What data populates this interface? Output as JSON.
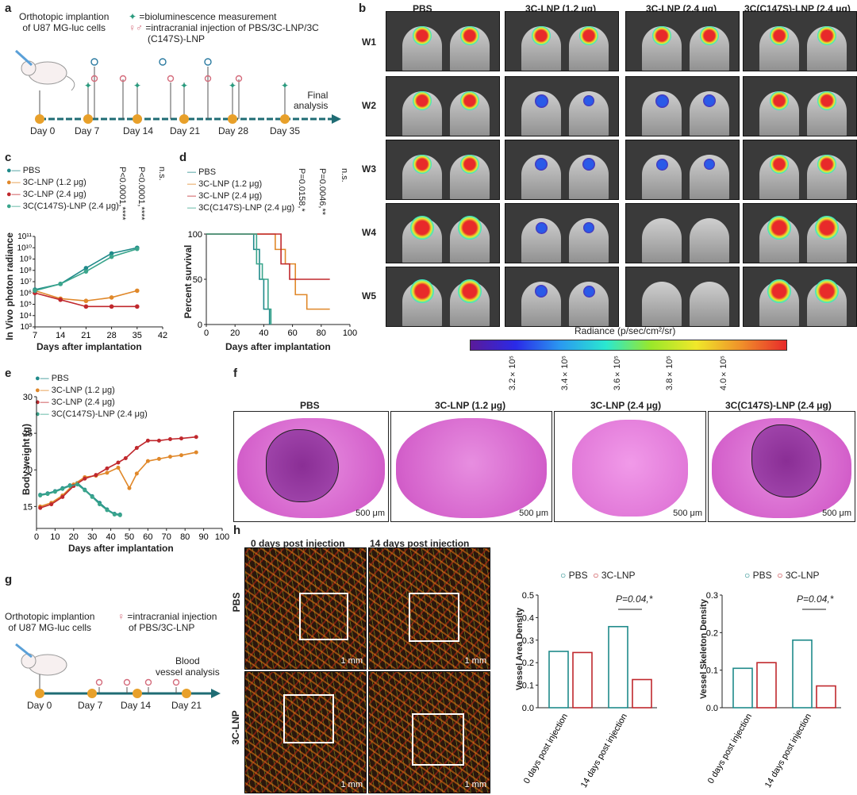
{
  "panel_letters": {
    "a": "a",
    "b": "b",
    "c": "c",
    "d": "d",
    "e": "e",
    "f": "f",
    "g": "g",
    "h": "h"
  },
  "panel_a": {
    "model_line1": "Orthotopic implantion",
    "model_line2": "of U87 MG-luc cells",
    "legend_bio": "=bioluminescence measurement",
    "legend_inj_1": "=intracranial injection of PBS/3C-LNP/3C",
    "legend_inj_2": "(C147S)-LNP",
    "final_1": "Final",
    "final_2": "analysis",
    "days": [
      "Day 0",
      "Day 7",
      "Day 14",
      "Day 21",
      "Day 28",
      "Day 35"
    ]
  },
  "panel_b": {
    "columns": [
      "PBS",
      "3C-LNP (1.2 μg)",
      "3C-LNP (2.4 μg)",
      "3C(C147S)-LNP (2.4 μg)"
    ],
    "rows": [
      "W1",
      "W2",
      "W3",
      "W4",
      "W5"
    ],
    "colorbar_label": "Radiance (p/sec/cm²/sr)",
    "colorbar_ticks": [
      "3.2×10⁵",
      "3.4×10⁵",
      "3.6×10⁵",
      "3.8×10⁵",
      "4.0×10⁵"
    ]
  },
  "panel_c": {
    "legend": [
      "PBS",
      "3C-LNP (1.2 μg)",
      "3C-LNP (2.4 μg)",
      "3C(C147S)-LNP (2.4 μg)"
    ],
    "stats": [
      "P<0.0001,****",
      "P<0.0001,****",
      "n.s."
    ],
    "ylabel": "In Vivo photon radiance",
    "xlabel": "Days after implantation"
  },
  "panel_d": {
    "legend": [
      "PBS",
      "3C-LNP (1.2 μg)",
      "3C-LNP (2.4 μg)",
      "3C(C147S)-LNP (2.4 μg)"
    ],
    "stats": [
      "P=0.0158,*",
      "P=0.0046,**",
      "n.s."
    ],
    "ylabel": "Percent survival",
    "xlabel": "Days after implantation"
  },
  "panel_e": {
    "legend": [
      "PBS",
      "3C-LNP (1.2 μg)",
      "3C-LNP (2.4 μg)",
      "3C(C147S)-LNP (2.4 μg)"
    ],
    "ylabel": "Body weight (g)",
    "xlabel": "Days after implantation"
  },
  "panel_f": {
    "titles": [
      "PBS",
      "3C-LNP (1.2 μg)",
      "3C-LNP (2.4 μg)",
      "3C(C147S)-LNP (2.4 μg)"
    ],
    "scale": "500 μm"
  },
  "panel_g": {
    "model_line1": "Orthotopic implantion",
    "model_line2": "of U87 MG-luc cells",
    "legend_inj_1": "=intracranial injection",
    "legend_inj_2": "of PBS/3C-LNP",
    "blood_1": "Blood",
    "blood_2": "vessel analysis",
    "days": [
      "Day 0",
      "Day 7",
      "Day 14",
      "Day 21"
    ]
  },
  "panel_h": {
    "col_titles": [
      "0 days post injection",
      "14 days post injection"
    ],
    "row_titles": [
      "PBS",
      "3C-LNP"
    ],
    "scale": "1 mm",
    "legend": [
      "PBS",
      "3C-LNP"
    ],
    "ylabel_1": "Vessel Area Density",
    "ylabel_2": "Vessel Skeleton Density",
    "pval": "P=0.04,*",
    "xcats": [
      "0 days post injection",
      "14 days post injection"
    ]
  },
  "colors": {
    "pbs": "#1f8a8a",
    "lnp12": "#e0882a",
    "lnp24": "#c0282d",
    "c147s": "#3aa58c"
  },
  "chart_data": [
    {
      "type": "line",
      "panel": "c",
      "title": "",
      "xlabel": "Days after implantation",
      "ylabel": "In Vivo photon radiance",
      "yscale": "log",
      "xlim": [
        7,
        42
      ],
      "ylim_log10": [
        3,
        11
      ],
      "x_ticks": [
        7,
        14,
        21,
        28,
        35,
        42
      ],
      "y_ticks": [
        "10³",
        "10⁴",
        "10⁵",
        "10⁶",
        "10⁷",
        "10⁸",
        "10⁹",
        "10¹⁰",
        "10¹¹"
      ],
      "x": [
        7,
        14,
        21,
        28,
        35
      ],
      "series": [
        {
          "name": "PBS",
          "log10_values": [
            6.3,
            6.8,
            8.2,
            9.5,
            10.0
          ]
        },
        {
          "name": "3C-LNP (1.2 μg)",
          "log10_values": [
            6.2,
            5.5,
            5.3,
            5.6,
            6.2
          ]
        },
        {
          "name": "3C-LNP (2.4 μg)",
          "log10_values": [
            6.0,
            5.4,
            4.8,
            4.8,
            4.8
          ]
        },
        {
          "name": "3C(C147S)-LNP (2.4 μg)",
          "log10_values": [
            6.2,
            6.8,
            7.9,
            9.2,
            9.9
          ]
        }
      ]
    },
    {
      "type": "line",
      "panel": "d",
      "title": "",
      "xlabel": "Days after implantation",
      "ylabel": "Percent survival",
      "xlim": [
        0,
        100
      ],
      "ylim": [
        0,
        100
      ],
      "x_ticks": [
        0,
        20,
        40,
        60,
        80,
        100
      ],
      "y_ticks": [
        0,
        50,
        100
      ],
      "series": [
        {
          "name": "PBS",
          "x": [
            0,
            33,
            33,
            37,
            37,
            40,
            40,
            44,
            44
          ],
          "values": [
            100,
            100,
            83,
            83,
            50,
            50,
            17,
            17,
            0
          ]
        },
        {
          "name": "3C-LNP (1.2 μg)",
          "x": [
            0,
            48,
            48,
            55,
            55,
            62,
            62,
            70,
            70,
            86
          ],
          "values": [
            100,
            100,
            83,
            83,
            67,
            67,
            33,
            33,
            17,
            17
          ]
        },
        {
          "name": "3C-LNP (2.4 μg)",
          "x": [
            0,
            52,
            52,
            58,
            58,
            86
          ],
          "values": [
            100,
            100,
            67,
            67,
            50,
            50
          ]
        },
        {
          "name": "3C(C147S)-LNP (2.4 μg)",
          "x": [
            0,
            35,
            35,
            39,
            39,
            43,
            43,
            45,
            45
          ],
          "values": [
            100,
            100,
            67,
            67,
            50,
            50,
            17,
            17,
            0
          ]
        }
      ]
    },
    {
      "type": "line",
      "panel": "e",
      "title": "",
      "xlabel": "Days after implantation",
      "ylabel": "Body weight (g)",
      "xlim": [
        0,
        100
      ],
      "ylim": [
        12,
        30
      ],
      "x_ticks": [
        0,
        10,
        20,
        30,
        40,
        50,
        60,
        70,
        80,
        90,
        100
      ],
      "y_ticks": [
        15,
        20,
        25,
        30
      ],
      "series": [
        {
          "name": "PBS",
          "x": [
            2,
            6,
            10,
            14,
            18,
            22,
            26,
            30,
            34,
            38,
            42,
            45
          ],
          "values": [
            16.6,
            16.8,
            17.1,
            17.5,
            17.9,
            18.2,
            17.3,
            16.4,
            15.5,
            14.6,
            14.0,
            13.9
          ]
        },
        {
          "name": "3C-LNP (1.2 μg)",
          "x": [
            2,
            8,
            14,
            20,
            26,
            32,
            38,
            44,
            50,
            54,
            60,
            66,
            72,
            78,
            86
          ],
          "values": [
            15.0,
            15.5,
            16.5,
            18.0,
            19.0,
            19.2,
            19.6,
            20.3,
            17.5,
            19.5,
            21.2,
            21.5,
            21.8,
            22.0,
            22.4
          ]
        },
        {
          "name": "3C-LNP (2.4 μg)",
          "x": [
            2,
            8,
            14,
            20,
            26,
            32,
            38,
            44,
            48,
            54,
            60,
            66,
            72,
            78,
            86
          ],
          "values": [
            14.8,
            15.3,
            16.3,
            17.8,
            18.8,
            19.3,
            20.2,
            21.0,
            21.6,
            23.0,
            24.0,
            24.0,
            24.2,
            24.3,
            24.5
          ]
        },
        {
          "name": "3C(C147S)-LNP (2.4 μg)",
          "x": [
            2,
            6,
            10,
            14,
            18,
            22,
            26,
            30,
            34,
            38,
            42,
            45
          ],
          "values": [
            16.5,
            16.7,
            17.0,
            17.4,
            17.8,
            18.0,
            17.2,
            16.3,
            15.3,
            14.5,
            13.9,
            13.8
          ]
        }
      ]
    },
    {
      "type": "bar",
      "panel": "h",
      "title": "",
      "ylabel": "Vessel Area Density",
      "categories": [
        "0 days post injection",
        "14 days post injection"
      ],
      "ylim": [
        0,
        0.5
      ],
      "y_ticks": [
        0.0,
        0.1,
        0.2,
        0.3,
        0.4,
        0.5
      ],
      "series": [
        {
          "name": "PBS",
          "values": [
            0.25,
            0.36
          ]
        },
        {
          "name": "3C-LNP",
          "values": [
            0.245,
            0.125
          ]
        }
      ]
    },
    {
      "type": "bar",
      "panel": "h",
      "title": "",
      "ylabel": "Vessel Skeleton Density",
      "categories": [
        "0 days post injection",
        "14 days post injection"
      ],
      "ylim": [
        0,
        0.3
      ],
      "y_ticks": [
        0.0,
        0.1,
        0.2,
        0.3
      ],
      "series": [
        {
          "name": "PBS",
          "values": [
            0.105,
            0.18
          ]
        },
        {
          "name": "3C-LNP",
          "values": [
            0.12,
            0.058
          ]
        }
      ]
    }
  ]
}
